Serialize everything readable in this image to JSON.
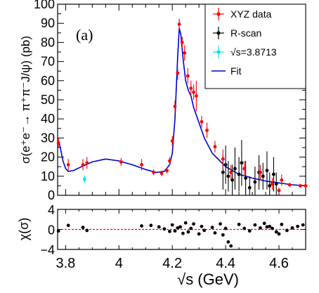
{
  "chart_data": [
    {
      "type": "scatter",
      "panel_label": "(a)",
      "xlabel": "√s (GeV)",
      "ylabel": "σ(e⁺e⁻→ π⁺π⁻J/ψ) (pb)",
      "xlim": [
        3.77,
        4.7
      ],
      "ylim": [
        0,
        100
      ],
      "x_ticks": [
        "3.8",
        "4",
        "4.2",
        "4.4",
        "4.6"
      ],
      "x_tick_values": [
        3.8,
        4.0,
        4.2,
        4.4,
        4.6
      ],
      "y_ticks": [
        "0",
        "10",
        "20",
        "30",
        "40",
        "50",
        "60",
        "70",
        "80",
        "90",
        "100"
      ],
      "y_tick_values": [
        0,
        10,
        20,
        30,
        40,
        50,
        60,
        70,
        80,
        90,
        100
      ],
      "legend_position": "top-right",
      "legend": [
        {
          "label": "XYZ data",
          "color": "#ff0000",
          "kind": "point"
        },
        {
          "label": "R-scan",
          "color": "#000000",
          "kind": "point"
        },
        {
          "label": "√s=3.8713",
          "color": "#00e5ee",
          "kind": "point"
        },
        {
          "label": "Fit",
          "color": "#0000cc",
          "kind": "line"
        }
      ],
      "series": [
        {
          "name": "XYZ data",
          "color": "#ff0000",
          "points": [
            {
              "x": 3.773,
              "y": 27.5,
              "err": 2.5
            },
            {
              "x": 3.81,
              "y": 16,
              "err": 3
            },
            {
              "x": 3.865,
              "y": 16,
              "err": 3
            },
            {
              "x": 3.88,
              "y": 17,
              "err": 3
            },
            {
              "x": 4.008,
              "y": 17.5,
              "err": 2
            },
            {
              "x": 4.085,
              "y": 16,
              "err": 3
            },
            {
              "x": 4.13,
              "y": 12,
              "err": 1.5
            },
            {
              "x": 4.16,
              "y": 11.5,
              "err": 1.5
            },
            {
              "x": 4.18,
              "y": 13,
              "err": 1.5
            },
            {
              "x": 4.19,
              "y": 18,
              "err": 2
            },
            {
              "x": 4.2,
              "y": 28.5,
              "err": 2.5
            },
            {
              "x": 4.21,
              "y": 46.5,
              "err": 3
            },
            {
              "x": 4.22,
              "y": 64,
              "err": 3.5
            },
            {
              "x": 4.226,
              "y": 89.5,
              "err": 3
            },
            {
              "x": 4.237,
              "y": 80,
              "err": 3
            },
            {
              "x": 4.246,
              "y": 74.5,
              "err": 4
            },
            {
              "x": 4.258,
              "y": 62.5,
              "err": 4
            },
            {
              "x": 4.27,
              "y": 56,
              "err": 4
            },
            {
              "x": 4.28,
              "y": 54,
              "err": 4
            },
            {
              "x": 4.29,
              "y": 52,
              "err": 8
            },
            {
              "x": 4.31,
              "y": 38.5,
              "err": 3
            },
            {
              "x": 4.33,
              "y": 34,
              "err": 4
            },
            {
              "x": 4.36,
              "y": 25.5,
              "err": 3
            },
            {
              "x": 4.39,
              "y": 19,
              "err": 5
            },
            {
              "x": 4.42,
              "y": 12,
              "err": 4
            },
            {
              "x": 4.47,
              "y": 14,
              "err": 4
            },
            {
              "x": 4.53,
              "y": 12,
              "err": 4
            },
            {
              "x": 4.575,
              "y": 6,
              "err": 3
            },
            {
              "x": 4.6,
              "y": 2.5,
              "err": 1.5
            },
            {
              "x": 4.61,
              "y": 8,
              "err": 3
            },
            {
              "x": 4.64,
              "y": 5.5,
              "err": 1
            },
            {
              "x": 4.68,
              "y": 5,
              "err": 1
            },
            {
              "x": 4.7,
              "y": 5,
              "err": 1
            }
          ]
        },
        {
          "name": "R-scan",
          "color": "#000000",
          "points": [
            {
              "x": 4.39,
              "y": 12,
              "err": 9
            },
            {
              "x": 4.4,
              "y": 16,
              "err": 10
            },
            {
              "x": 4.41,
              "y": 10,
              "err": 8
            },
            {
              "x": 4.425,
              "y": 8,
              "err": 8
            },
            {
              "x": 4.435,
              "y": 14,
              "err": 11
            },
            {
              "x": 4.45,
              "y": 11,
              "err": 9
            },
            {
              "x": 4.46,
              "y": 17,
              "err": 12
            },
            {
              "x": 4.475,
              "y": 9,
              "err": 9
            },
            {
              "x": 4.49,
              "y": 4,
              "err": 6
            },
            {
              "x": 4.51,
              "y": 7,
              "err": 8
            },
            {
              "x": 4.525,
              "y": 12,
              "err": 9
            },
            {
              "x": 4.54,
              "y": 10,
              "err": 7
            },
            {
              "x": 4.555,
              "y": 13,
              "err": 10
            },
            {
              "x": 4.565,
              "y": 5,
              "err": 7
            },
            {
              "x": 4.58,
              "y": 11,
              "err": 9
            },
            {
              "x": 4.59,
              "y": 6,
              "err": 6
            }
          ]
        },
        {
          "name": "√s=3.8713",
          "color": "#00e5ee",
          "points": [
            {
              "x": 3.871,
              "y": 8.5,
              "err": 2
            }
          ]
        }
      ],
      "fit": {
        "name": "Fit",
        "color": "#0000cc",
        "points": [
          [
            3.77,
            26
          ],
          [
            3.775,
            28
          ],
          [
            3.78,
            25
          ],
          [
            3.79,
            18
          ],
          [
            3.8,
            14
          ],
          [
            3.81,
            12.5
          ],
          [
            3.83,
            13
          ],
          [
            3.86,
            15
          ],
          [
            3.9,
            17.5
          ],
          [
            3.95,
            19
          ],
          [
            4.0,
            18
          ],
          [
            4.05,
            16
          ],
          [
            4.1,
            13.5
          ],
          [
            4.14,
            12
          ],
          [
            4.17,
            12.5
          ],
          [
            4.19,
            16
          ],
          [
            4.2,
            22
          ],
          [
            4.21,
            40
          ],
          [
            4.22,
            72
          ],
          [
            4.226,
            87.5
          ],
          [
            4.232,
            84
          ],
          [
            4.24,
            72
          ],
          [
            4.25,
            60
          ],
          [
            4.26,
            55
          ],
          [
            4.27,
            52
          ],
          [
            4.28,
            46
          ],
          [
            4.3,
            38
          ],
          [
            4.32,
            30
          ],
          [
            4.35,
            22
          ],
          [
            4.4,
            15
          ],
          [
            4.45,
            11
          ],
          [
            4.5,
            9
          ],
          [
            4.55,
            7.5
          ],
          [
            4.6,
            6.5
          ],
          [
            4.65,
            5.5
          ],
          [
            4.7,
            5
          ]
        ]
      }
    },
    {
      "type": "scatter",
      "xlabel": "√s (GeV)",
      "ylabel": "χ(σ)",
      "xlim": [
        3.77,
        4.7
      ],
      "ylim": [
        -4,
        4
      ],
      "y_ticks": [
        "−4",
        "0",
        "4"
      ],
      "y_tick_values": [
        -4,
        0,
        4
      ],
      "zero_line_color": "#ff0000",
      "series": [
        {
          "name": "",
          "color": "#000000",
          "points": [
            {
              "x": 3.773,
              "y": -0.3
            },
            {
              "x": 3.81,
              "y": 0.8
            },
            {
              "x": 3.865,
              "y": 0.4
            },
            {
              "x": 3.88,
              "y": -0.2
            },
            {
              "x": 4.085,
              "y": 0.7
            },
            {
              "x": 4.12,
              "y": 0.8
            },
            {
              "x": 4.15,
              "y": 0.5
            },
            {
              "x": 4.17,
              "y": 0.1
            },
            {
              "x": 4.19,
              "y": -0.4
            },
            {
              "x": 4.2,
              "y": 0.9
            },
            {
              "x": 4.21,
              "y": -0.3
            },
            {
              "x": 4.22,
              "y": 0.3
            },
            {
              "x": 4.23,
              "y": 0.5
            },
            {
              "x": 4.24,
              "y": -0.8
            },
            {
              "x": 4.25,
              "y": 1.3
            },
            {
              "x": 4.26,
              "y": -0.5
            },
            {
              "x": 4.27,
              "y": 0.2
            },
            {
              "x": 4.28,
              "y": 1.1
            },
            {
              "x": 4.3,
              "y": -0.9
            },
            {
              "x": 4.31,
              "y": 0.6
            },
            {
              "x": 4.32,
              "y": -0.2
            },
            {
              "x": 4.35,
              "y": 0.4
            },
            {
              "x": 4.36,
              "y": -0.7
            },
            {
              "x": 4.38,
              "y": 1.1
            },
            {
              "x": 4.39,
              "y": -1.1
            },
            {
              "x": 4.4,
              "y": 0.2
            },
            {
              "x": 4.41,
              "y": -2.5
            },
            {
              "x": 4.42,
              "y": -3.3
            },
            {
              "x": 4.45,
              "y": 1.0
            },
            {
              "x": 4.47,
              "y": 0.2
            },
            {
              "x": 4.49,
              "y": -0.3
            },
            {
              "x": 4.51,
              "y": 0.9
            },
            {
              "x": 4.53,
              "y": 0.3
            },
            {
              "x": 4.545,
              "y": 1.2
            },
            {
              "x": 4.555,
              "y": 0.5
            },
            {
              "x": 4.565,
              "y": 0.6
            },
            {
              "x": 4.575,
              "y": 0.2
            },
            {
              "x": 4.59,
              "y": -0.5
            },
            {
              "x": 4.6,
              "y": -0.9
            },
            {
              "x": 4.61,
              "y": 1.0
            },
            {
              "x": 4.63,
              "y": -0.2
            },
            {
              "x": 4.65,
              "y": 0.3
            },
            {
              "x": 4.67,
              "y": 0.6
            },
            {
              "x": 4.69,
              "y": 0.9
            }
          ]
        }
      ]
    }
  ]
}
